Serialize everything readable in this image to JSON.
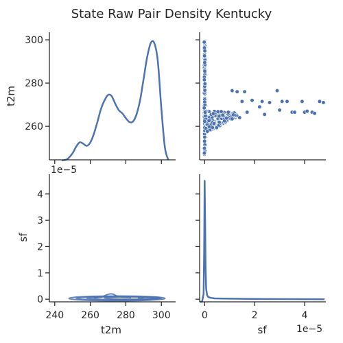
{
  "chart_data": {
    "type": "pairplot",
    "title": "State Raw Pair Density Kentucky",
    "variables": [
      "t2m",
      "sf"
    ],
    "sf_offset_label": "1e−5",
    "panels": [
      {
        "id": "t2m-t2m",
        "type": "kde",
        "variable": "t2m",
        "x": [
          244,
          247,
          250,
          252,
          254,
          256,
          258,
          260,
          262,
          264,
          266,
          268,
          270,
          272,
          274,
          276,
          278,
          280,
          282,
          284,
          286,
          288,
          290,
          292,
          294,
          296,
          298,
          300,
          302,
          304
        ],
        "density_in_y_units": [
          244.2,
          244.8,
          247.5,
          250.5,
          252.6,
          252.0,
          251.0,
          252.5,
          256.5,
          262.0,
          268.0,
          272.0,
          274.5,
          274.0,
          270.5,
          267.5,
          266.0,
          263.8,
          262.0,
          262.2,
          265.5,
          272.0,
          282.0,
          292.0,
          298.5,
          298.5,
          290.0,
          268.0,
          250.0,
          244.3
        ],
        "xlim": [
          237,
          308
        ],
        "ylim": [
          244.5,
          303.5
        ],
        "yticks": [
          260,
          280,
          300
        ]
      },
      {
        "id": "t2m-sf",
        "type": "scatter",
        "xvar": "sf",
        "yvar": "t2m",
        "x_scale": 1e-05,
        "xlim": [
          -0.2,
          4.85
        ],
        "ylim": [
          244.5,
          303.5
        ],
        "xticks": [
          0,
          2,
          4
        ],
        "yticks": [
          260,
          280,
          300
        ]
      },
      {
        "id": "sf-t2m",
        "type": "kde2d",
        "xvar": "t2m",
        "yvar": "sf",
        "y_scale": 1e-05,
        "xlim": [
          237,
          308
        ],
        "ylim": [
          -0.1,
          4.75
        ],
        "xticks": [
          240,
          260,
          280,
          300
        ],
        "yticks": [
          0,
          1,
          2,
          3,
          4
        ]
      },
      {
        "id": "sf-sf",
        "type": "kde",
        "variable": "sf",
        "x": [
          -0.2,
          -0.1,
          -0.04,
          -0.02,
          0.0,
          0.02,
          0.04,
          0.06,
          0.1,
          0.15,
          0.25,
          0.4,
          1.0,
          2.0,
          4.8
        ],
        "density_in_y_units": [
          -0.1,
          -0.09,
          0.2,
          1.8,
          4.5,
          3.0,
          1.2,
          0.4,
          0.15,
          0.08,
          0.05,
          0.03,
          0.02,
          0.01,
          0.0
        ],
        "xlim": [
          -0.2,
          4.85
        ],
        "ylim": [
          -0.1,
          4.75
        ],
        "xticks": [
          0,
          2,
          4
        ],
        "yticks": [
          0,
          1,
          2,
          3,
          4
        ]
      }
    ],
    "tick_labels": {
      "t2m_x": [
        "240",
        "260",
        "280",
        "300"
      ],
      "t2m_y": [
        "260",
        "280",
        "300"
      ],
      "sf_x": [
        "0",
        "2",
        "4"
      ],
      "sf_y": [
        "0",
        "1",
        "2",
        "3",
        "4"
      ]
    },
    "xlabels": [
      "t2m",
      "sf"
    ],
    "ylabels": [
      "t2m",
      "sf"
    ]
  },
  "colors": {
    "series": "#4c72b0",
    "text": "#262626"
  }
}
